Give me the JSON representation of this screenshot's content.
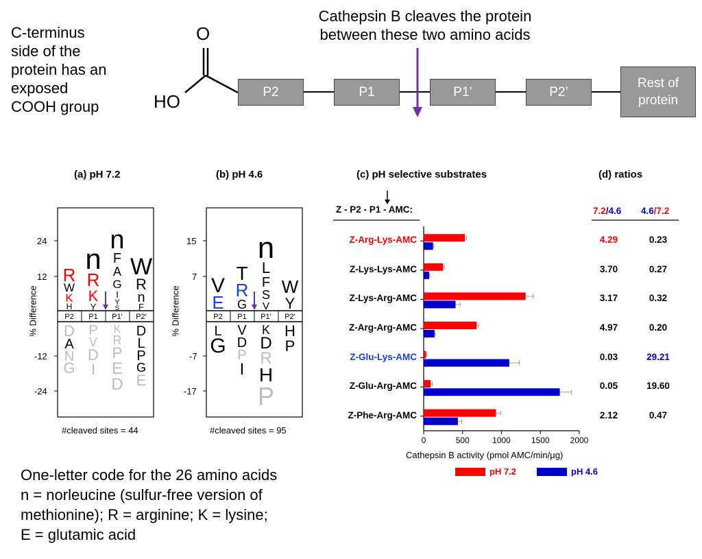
{
  "top": {
    "c_terminus_lines": [
      "C-terminus",
      "side of the",
      "protein has an",
      "exposed",
      "COOH group"
    ],
    "cleave_lines": [
      "Cathepsin B cleaves the protein",
      "between these two amino acids"
    ],
    "o_label": "O",
    "ho_label": "HO",
    "boxes": [
      "P2",
      "P1",
      "P1’",
      "P2’"
    ],
    "rest_lines": [
      "Rest of",
      "protein"
    ],
    "arrow_color": "#7030a0"
  },
  "panel_a": {
    "title": "(a) pH 7.2",
    "ylabel": "% Difference",
    "yticks": [
      "24",
      "12",
      "-12",
      "-24"
    ],
    "positions": [
      "P2",
      "P1",
      "P1'",
      "P2'"
    ],
    "footer": "#cleaved sites = 44",
    "top_letters": [
      [
        "R",
        "W",
        "K",
        "H"
      ],
      [
        "n",
        "R",
        "K",
        "Y"
      ],
      [
        "n",
        "F",
        "A",
        "G",
        "I",
        "Y",
        "S"
      ],
      [
        "W",
        "R",
        "n",
        "F"
      ]
    ],
    "bottom_letters": [
      [
        "D",
        "A",
        "N",
        "G"
      ],
      [
        "P",
        "V",
        "D",
        "I"
      ],
      [
        "K",
        "R",
        "P",
        "E",
        "D"
      ],
      [
        "D",
        "L",
        "P",
        "G",
        "E"
      ]
    ]
  },
  "panel_b": {
    "title": "(b) pH 4.6",
    "ylabel": "% Difference",
    "yticks": [
      "15",
      "7",
      "-7",
      "-17"
    ],
    "positions": [
      "P2",
      "P1",
      "P1'",
      "P2'"
    ],
    "footer": "#cleaved sites = 95",
    "top_letters": [
      [
        "V",
        "E"
      ],
      [
        "T",
        "R",
        "G"
      ],
      [
        "n",
        "L",
        "F",
        "S",
        "V"
      ],
      [
        "W",
        "Y"
      ]
    ],
    "bottom_letters": [
      [
        "L",
        "G"
      ],
      [
        "V",
        "D",
        "P",
        "I"
      ],
      [
        "K",
        "D",
        "R",
        "H",
        "P"
      ],
      [
        "H",
        "P"
      ]
    ]
  },
  "panel_c": {
    "title": "(c) pH selective substrates",
    "scheme": "Z - P2 - P1 - AMC:",
    "xlabel": "Cathepsin B activity (pmol AMC/min/µg)",
    "legend": [
      {
        "label": "pH 7.2",
        "color": "#ff0000"
      },
      {
        "label": "pH 4.6",
        "color": "#0000cc"
      }
    ]
  },
  "panel_d": {
    "title": "(d) ratios",
    "col1_a": "7.2",
    "col1_b": "/4.6",
    "col2_a": "4.6",
    "col2_b": "/7.2"
  },
  "chart_data": {
    "type": "bar",
    "orientation": "horizontal",
    "categories": [
      "Z-Arg-Lys-AMC",
      "Z-Lys-Lys-AMC",
      "Z-Lys-Arg-AMC",
      "Z-Arg-Arg-AMC",
      "Z-Glu-Lys-AMC",
      "Z-Glu-Arg-AMC",
      "Z-Phe-Arg-AMC"
    ],
    "category_colors": [
      "#ff0000",
      "#000000",
      "#000000",
      "#000000",
      "#1a3fd6",
      "#000000",
      "#000000"
    ],
    "series": [
      {
        "name": "pH 7.2",
        "color": "#ff0000",
        "values": [
          530,
          250,
          1310,
          680,
          30,
          90,
          930
        ],
        "errors": [
          20,
          15,
          100,
          25,
          10,
          20,
          60
        ]
      },
      {
        "name": "pH 4.6",
        "color": "#0000cc",
        "values": [
          120,
          70,
          410,
          140,
          1100,
          1750,
          440
        ],
        "errors": [
          10,
          8,
          60,
          10,
          130,
          150,
          50
        ]
      }
    ],
    "xticks": [
      0,
      500,
      1000,
      1500,
      2000
    ],
    "xlim": [
      0,
      2000
    ],
    "ratios_72_46": [
      "4.29",
      "3.70",
      "3.17",
      "4.97",
      "0.03",
      "0.05",
      "2.12"
    ],
    "ratios_46_72": [
      "0.23",
      "0.27",
      "0.32",
      "0.20",
      "29.21",
      "19.60",
      "0.47"
    ],
    "xlabel": "Cathepsin B activity (pmol AMC/min/µg)"
  },
  "bottom_note": [
    "One-letter code for the 26 amino acids",
    "n = norleucine (sulfur-free version of",
    "methionine); R = arginine; K = lysine;",
    "E = glutamic acid"
  ]
}
